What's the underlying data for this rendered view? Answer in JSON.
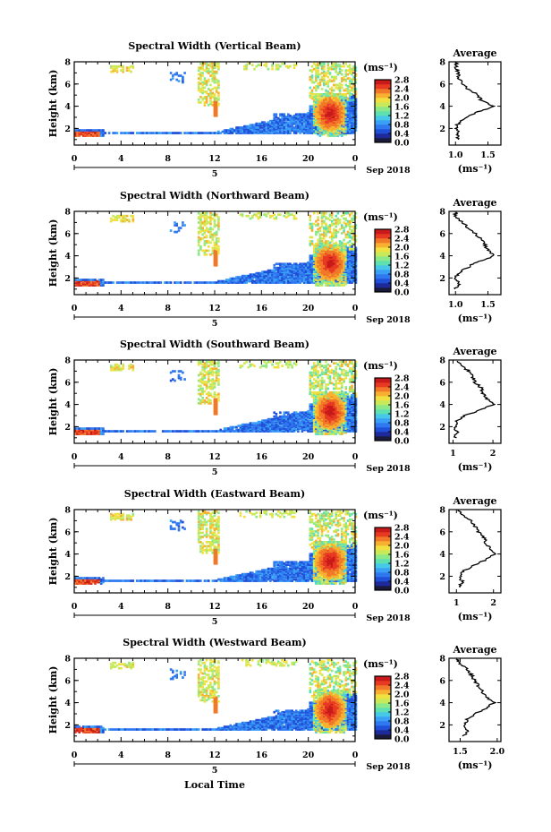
{
  "chart_data": [
    {
      "type": "heatmap",
      "title": "Spectral Width (Vertical Beam)",
      "ylabel": "Height (km)",
      "xticks": [
        "0",
        "4",
        "8",
        "12",
        "16",
        "20",
        "0"
      ],
      "yticks": [
        "2",
        "4",
        "6",
        "8"
      ],
      "day_label": "5",
      "date_label": "Sep 2018",
      "ylim": [
        0.5,
        8.0
      ],
      "colorbar": {
        "unit": "(ms⁻¹)",
        "ticks": [
          "0.0",
          "0.4",
          "0.8",
          "1.2",
          "1.6",
          "2.0",
          "2.4",
          "2.8"
        ],
        "range": [
          0.0,
          2.8
        ]
      },
      "profile": {
        "title": "Average",
        "xlabel": "(ms⁻¹)",
        "xticks": [
          "1.0",
          "1.5"
        ],
        "xlim": [
          0.9,
          1.7
        ],
        "yticks": [
          "2",
          "4",
          "6",
          "8"
        ],
        "height": [
          1.0,
          1.5,
          2.0,
          2.5,
          3.0,
          3.5,
          4.0,
          4.5,
          5.0,
          5.5,
          6.0,
          6.5,
          7.0,
          7.5,
          8.0
        ],
        "value": [
          1.02,
          1.05,
          1.0,
          1.05,
          1.15,
          1.35,
          1.6,
          1.4,
          1.35,
          1.2,
          1.1,
          1.05,
          1.05,
          1.0,
          1.02
        ]
      }
    },
    {
      "type": "heatmap",
      "title": "Spectral Width (Northward Beam)",
      "ylabel": "Height (km)",
      "xticks": [
        "0",
        "4",
        "8",
        "12",
        "16",
        "20",
        "0"
      ],
      "yticks": [
        "2",
        "4",
        "6",
        "8"
      ],
      "day_label": "5",
      "date_label": "Sep 2018",
      "ylim": [
        0.5,
        8.0
      ],
      "colorbar": {
        "unit": "(ms⁻¹)",
        "ticks": [
          "0.0",
          "0.4",
          "0.8",
          "1.2",
          "1.6",
          "2.0",
          "2.4",
          "2.8"
        ],
        "range": [
          0.0,
          2.8
        ]
      },
      "profile": {
        "title": "Average",
        "xlabel": "(ms⁻¹)",
        "xticks": [
          "1.0",
          "1.5"
        ],
        "xlim": [
          0.9,
          1.7
        ],
        "yticks": [
          "2",
          "4",
          "6",
          "8"
        ],
        "height": [
          1.0,
          1.5,
          2.0,
          2.5,
          3.0,
          3.5,
          4.0,
          4.5,
          5.0,
          5.5,
          6.0,
          6.5,
          7.0,
          7.5,
          8.0
        ],
        "value": [
          1.0,
          1.05,
          1.0,
          1.05,
          1.2,
          1.35,
          1.6,
          1.5,
          1.45,
          1.4,
          1.3,
          1.2,
          1.1,
          1.0,
          1.0
        ]
      }
    },
    {
      "type": "heatmap",
      "title": "Spectral Width (Southward Beam)",
      "ylabel": "Height (km)",
      "xticks": [
        "0",
        "4",
        "8",
        "12",
        "16",
        "20",
        "0"
      ],
      "yticks": [
        "2",
        "4",
        "6",
        "8"
      ],
      "day_label": "5",
      "date_label": "Sep 2018",
      "ylim": [
        0.5,
        8.0
      ],
      "colorbar": {
        "unit": "(ms⁻¹)",
        "ticks": [
          "0.0",
          "0.4",
          "0.8",
          "1.2",
          "1.6",
          "2.0",
          "2.4",
          "2.8"
        ],
        "range": [
          0.0,
          2.8
        ]
      },
      "profile": {
        "title": "Average",
        "xlabel": "(ms⁻¹)",
        "xticks": [
          "1",
          "2"
        ],
        "xlim": [
          0.9,
          2.2
        ],
        "yticks": [
          "2",
          "4",
          "6",
          "8"
        ],
        "height": [
          1.0,
          1.5,
          2.0,
          2.5,
          3.0,
          3.5,
          4.0,
          4.5,
          5.0,
          5.5,
          6.0,
          6.5,
          7.0,
          7.5,
          8.0
        ],
        "value": [
          1.05,
          1.1,
          1.05,
          1.1,
          1.3,
          1.7,
          2.0,
          1.85,
          1.75,
          1.7,
          1.55,
          1.5,
          1.4,
          1.2,
          1.05
        ]
      }
    },
    {
      "type": "heatmap",
      "title": "Spectral Width (Eastward Beam)",
      "ylabel": "Height (km)",
      "xticks": [
        "0",
        "4",
        "8",
        "12",
        "16",
        "20",
        "0"
      ],
      "yticks": [
        "2",
        "4",
        "6",
        "8"
      ],
      "day_label": "5",
      "date_label": "Sep 2018",
      "ylim": [
        0.5,
        8.0
      ],
      "colorbar": {
        "unit": "(ms⁻¹)",
        "ticks": [
          "0.0",
          "0.4",
          "0.8",
          "1.2",
          "1.6",
          "2.0",
          "2.4",
          "2.8"
        ],
        "range": [
          0.0,
          2.8
        ]
      },
      "profile": {
        "title": "Average",
        "xlabel": "(ms⁻¹)",
        "xticks": [
          "1",
          "2"
        ],
        "xlim": [
          0.8,
          2.2
        ],
        "yticks": [
          "2",
          "4",
          "6",
          "8"
        ],
        "height": [
          1.0,
          1.5,
          2.0,
          2.5,
          3.0,
          3.5,
          4.0,
          4.5,
          5.0,
          5.5,
          6.0,
          6.5,
          7.0,
          7.5,
          8.0
        ],
        "value": [
          1.1,
          1.15,
          1.1,
          1.2,
          1.5,
          1.8,
          2.05,
          1.9,
          1.8,
          1.75,
          1.6,
          1.5,
          1.4,
          1.2,
          1.0
        ]
      }
    },
    {
      "type": "heatmap",
      "title": "Spectral Width (Westward Beam)",
      "ylabel": "Height (km)",
      "xlabel": "Local Time",
      "xticks": [
        "0",
        "4",
        "8",
        "12",
        "16",
        "20",
        "0"
      ],
      "yticks": [
        "2",
        "4",
        "6",
        "8"
      ],
      "day_label": "5",
      "date_label": "Sep 2018",
      "ylim": [
        0.5,
        8.0
      ],
      "colorbar": {
        "unit": "(ms⁻¹)",
        "ticks": [
          "0.0",
          "0.4",
          "0.8",
          "1.2",
          "1.6",
          "2.0",
          "2.4",
          "2.8"
        ],
        "range": [
          0.0,
          2.8
        ]
      },
      "profile": {
        "title": "Average",
        "xlabel": "(ms⁻¹)",
        "xticks": [
          "1.5",
          "2.0"
        ],
        "xlim": [
          1.35,
          2.05
        ],
        "yticks": [
          "2",
          "4",
          "6",
          "8"
        ],
        "height": [
          1.0,
          1.5,
          2.0,
          2.5,
          3.0,
          3.5,
          4.0,
          4.5,
          5.0,
          5.5,
          6.0,
          6.5,
          7.0,
          7.5,
          8.0
        ],
        "value": [
          1.55,
          1.6,
          1.55,
          1.6,
          1.7,
          1.85,
          1.95,
          1.85,
          1.8,
          1.75,
          1.7,
          1.65,
          1.6,
          1.5,
          1.45
        ]
      }
    }
  ],
  "colors": {
    "colormap": [
      "#1a1a3a",
      "#1f2a9a",
      "#2050d8",
      "#2f78f0",
      "#3aa0f5",
      "#46c8e8",
      "#5ee0b0",
      "#8de888",
      "#c8ea5a",
      "#f0e040",
      "#f8b030",
      "#f07828",
      "#e83a22",
      "#c81a1a"
    ],
    "axis": "#000000",
    "profile_line": "#000000"
  }
}
